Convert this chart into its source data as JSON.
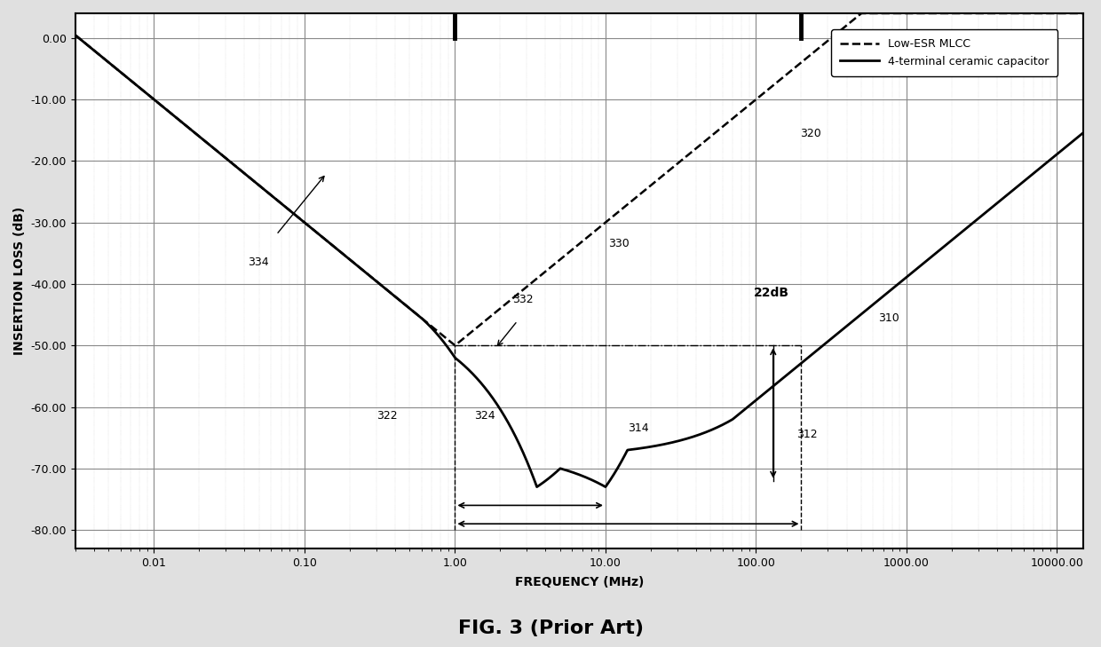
{
  "title": "FIG. 3 (Prior Art)",
  "xlabel": "FREQUENCY (MHz)",
  "ylabel": "INSERTION LOSS (dB)",
  "bg_color": "#ffffff",
  "outer_bg": "#e0e0e0",
  "legend_dashed_label": "Low-ESR MLCC",
  "legend_solid_label": "4-terminal ceramic capacitor",
  "ytick_vals": [
    0,
    -10,
    -20,
    -30,
    -40,
    -50,
    -60,
    -70,
    -80
  ],
  "ytick_labels": [
    "0.00",
    "-10.00",
    "-20.00",
    "-30.00",
    "-40.00",
    "-50.00",
    "-60.00",
    "-70.00",
    "-80.00"
  ],
  "xtick_vals": [
    0.01,
    0.1,
    1.0,
    10.0,
    100.0,
    1000.0,
    10000.0
  ],
  "xtick_labels": [
    "0.01",
    "0.10",
    "1.00",
    "10.00",
    "100.00",
    "1000.00",
    "10000.00"
  ],
  "xlim": [
    0.003,
    15000
  ],
  "ylim": [
    -83,
    4
  ]
}
